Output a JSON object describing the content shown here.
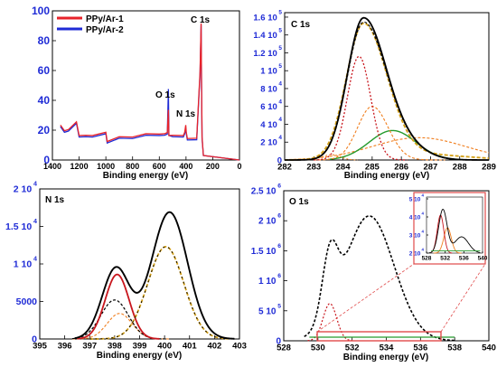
{
  "figure": {
    "panels": {
      "survey": {
        "legend": [
          "PPy/Ar-1",
          "PPy/Ar-2"
        ],
        "peaks": [
          "O 1s",
          "N 1s",
          "C 1s"
        ],
        "xlabel": "Binding energy (eV)",
        "xticks": [
          "1400",
          "1200",
          "1000",
          "800",
          "600",
          "400",
          "200",
          "0"
        ],
        "yticks": [
          "0",
          "20",
          "40",
          "60",
          "80",
          "100"
        ]
      },
      "c1s": {
        "title": "C 1s",
        "xlabel": "Binding energy (eV)",
        "xticks": [
          "282",
          "283",
          "284",
          "285",
          "286",
          "287",
          "288",
          "289"
        ],
        "yticks": [
          "0",
          "2 10",
          "4 10",
          "6 10",
          "8 10",
          "1 10",
          "1.2 10",
          "1.4 10",
          "1.6 10"
        ],
        "yexp": [
          "",
          "4",
          "4",
          "4",
          "4",
          "5",
          "5",
          "5",
          "5"
        ]
      },
      "n1s": {
        "title": "N 1s",
        "xlabel": "Binding energy (eV)",
        "xticks": [
          "395",
          "396",
          "397",
          "398",
          "399",
          "400",
          "401",
          "402",
          "403"
        ],
        "yticks": [
          "0",
          "5000",
          "1 10",
          "1.5 10",
          "2 10"
        ],
        "yexp": [
          "",
          "",
          "4",
          "4",
          "4"
        ]
      },
      "o1s": {
        "title": "O 1s",
        "xlabel": "Binding energy (eV)",
        "xticks": [
          "528",
          "530",
          "532",
          "534",
          "536",
          "538",
          "540"
        ],
        "yticks": [
          "0",
          "5 10",
          "1 10",
          "1.5 10",
          "2 10",
          "2.5 10"
        ],
        "yexp": [
          "",
          "5",
          "6",
          "6",
          "6",
          "6"
        ],
        "inset": {
          "xticks": [
            "528",
            "532",
            "536",
            "540"
          ],
          "yticks": [
            "2 10",
            "3 10",
            "4 10",
            "5 10"
          ],
          "yexp": [
            "4",
            "4",
            "4",
            "4"
          ]
        }
      }
    },
    "colors": {
      "ar1": "#e8232a",
      "ar2": "#1f2bd6",
      "axis_text": "#1f2bd6",
      "envelope": "#000000",
      "fit": "#d4a017",
      "comp_red": "#c8161d",
      "comp_orange": "#f07e1e",
      "comp_green": "#249a2c",
      "inset_frame": "#e04a4a"
    }
  },
  "chart_data": [
    {
      "type": "line",
      "panel": "survey",
      "xlabel": "Binding energy (eV)",
      "xlim": [
        1400,
        0
      ],
      "ylim": [
        0,
        100
      ],
      "series": [
        {
          "name": "PPy/Ar-1",
          "x": [
            1340,
            1310,
            1280,
            1220,
            1200,
            1150,
            1100,
            1000,
            990,
            900,
            800,
            700,
            600,
            560,
            540,
            532,
            528,
            500,
            420,
            410,
            402,
            398,
            390,
            320,
            295,
            287,
            284,
            280,
            270,
            0
          ],
          "y": [
            24,
            19,
            21,
            25,
            17,
            16,
            17,
            18,
            13,
            15,
            16,
            17,
            18,
            17,
            19,
            33,
            17,
            16,
            17,
            18,
            24,
            18,
            15,
            14,
            60,
            91,
            55,
            15,
            3,
            0
          ]
        },
        {
          "name": "PPy/Ar-2",
          "x": [
            1340,
            1310,
            1280,
            1220,
            1200,
            1150,
            1100,
            1000,
            990,
            900,
            800,
            700,
            600,
            560,
            540,
            532,
            528,
            500,
            420,
            410,
            402,
            398,
            390,
            320,
            295,
            287,
            284,
            280,
            270,
            0
          ],
          "y": [
            23,
            18,
            20,
            24,
            16,
            15,
            16,
            17,
            12,
            14,
            15,
            16,
            17,
            16,
            18,
            47,
            17,
            15,
            16,
            17,
            21,
            17,
            14,
            13,
            58,
            90,
            52,
            14,
            3,
            0
          ]
        }
      ],
      "annotations": [
        "O 1s",
        "N 1s",
        "C 1s"
      ]
    },
    {
      "type": "line",
      "panel": "c1s",
      "title": "C 1s",
      "xlabel": "Binding energy (eV)",
      "xlim": [
        282,
        289
      ],
      "ylim": [
        0,
        165000
      ],
      "components": [
        {
          "role": "envelope",
          "center": 284.7,
          "sigma_left": 0.55,
          "sigma_right": 0.78,
          "height": 158000,
          "shoulder": {
            "center": 286.2,
            "sigma": 0.7,
            "height": 12000
          }
        },
        {
          "role": "fit",
          "center": 284.7,
          "sigma_left": 0.58,
          "sigma_right": 0.8,
          "height": 150000
        },
        {
          "role": "C-C",
          "center": 284.55,
          "sigma": 0.4,
          "height": 116000
        },
        {
          "role": "C-N",
          "center": 285.0,
          "sigma_left": 0.5,
          "sigma_right": 0.55,
          "height": 60000
        },
        {
          "role": "C=O",
          "center": 285.7,
          "sigma": 0.8,
          "height": 33000
        },
        {
          "role": "broad",
          "center": 286.6,
          "sigma": 1.6,
          "height": 25000
        },
        {
          "role": "small",
          "center": 283.6,
          "sigma": 0.3,
          "height": 6000
        }
      ]
    },
    {
      "type": "line",
      "panel": "n1s",
      "title": "N 1s",
      "xlabel": "Binding energy (eV)",
      "xlim": [
        395,
        403
      ],
      "ylim": [
        0,
        20000
      ],
      "components": [
        {
          "role": "envelope",
          "peaks": [
            {
              "center": 398.05,
              "sigma": 0.55,
              "height": 9400
            },
            {
              "center": 400.2,
              "sigma": 0.72,
              "height": 16900
            }
          ]
        },
        {
          "role": "fit",
          "center": 400.05,
          "sigma": 0.72,
          "height": 12300
        },
        {
          "role": "pyrrolic-red",
          "center": 398.1,
          "sigma": 0.48,
          "height": 8600
        },
        {
          "role": "dashed-black",
          "center": 398.0,
          "sigma": 0.55,
          "height": 5200
        },
        {
          "role": "dashed-orange",
          "center": 398.2,
          "sigma": 0.5,
          "height": 3400
        }
      ]
    },
    {
      "type": "line",
      "panel": "o1s",
      "title": "O 1s",
      "xlabel": "Binding energy (eV)",
      "xlim": [
        528,
        540
      ],
      "ylim": [
        0,
        2500000
      ],
      "components": [
        {
          "role": "envelope",
          "peaks": [
            {
              "center": 530.7,
              "sigma": 0.45,
              "height": 1050000
            },
            {
              "center": 533.0,
              "sigma": 1.45,
              "height": 2080000
            }
          ]
        },
        {
          "role": "low-red",
          "center": 530.7,
          "sigma": 0.4,
          "height": 620000
        },
        {
          "role": "green-baseline",
          "from": 529.5,
          "to": 538,
          "y": 60000
        }
      ],
      "inset": {
        "xlim": [
          528,
          540
        ],
        "ylim": [
          20000,
          51000
        ],
        "components": [
          {
            "role": "black",
            "peaks": [
              {
                "center": 531.5,
                "sigma": 0.9,
                "height": 24000
              },
              {
                "center": 535.5,
                "sigma": 1.5,
                "height": 9000
              }
            ]
          },
          {
            "role": "red",
            "center": 531.0,
            "sigma": 0.7,
            "height": 21000
          },
          {
            "role": "orange",
            "center": 532.5,
            "sigma": 0.8,
            "height": 14000
          }
        ]
      }
    }
  ]
}
